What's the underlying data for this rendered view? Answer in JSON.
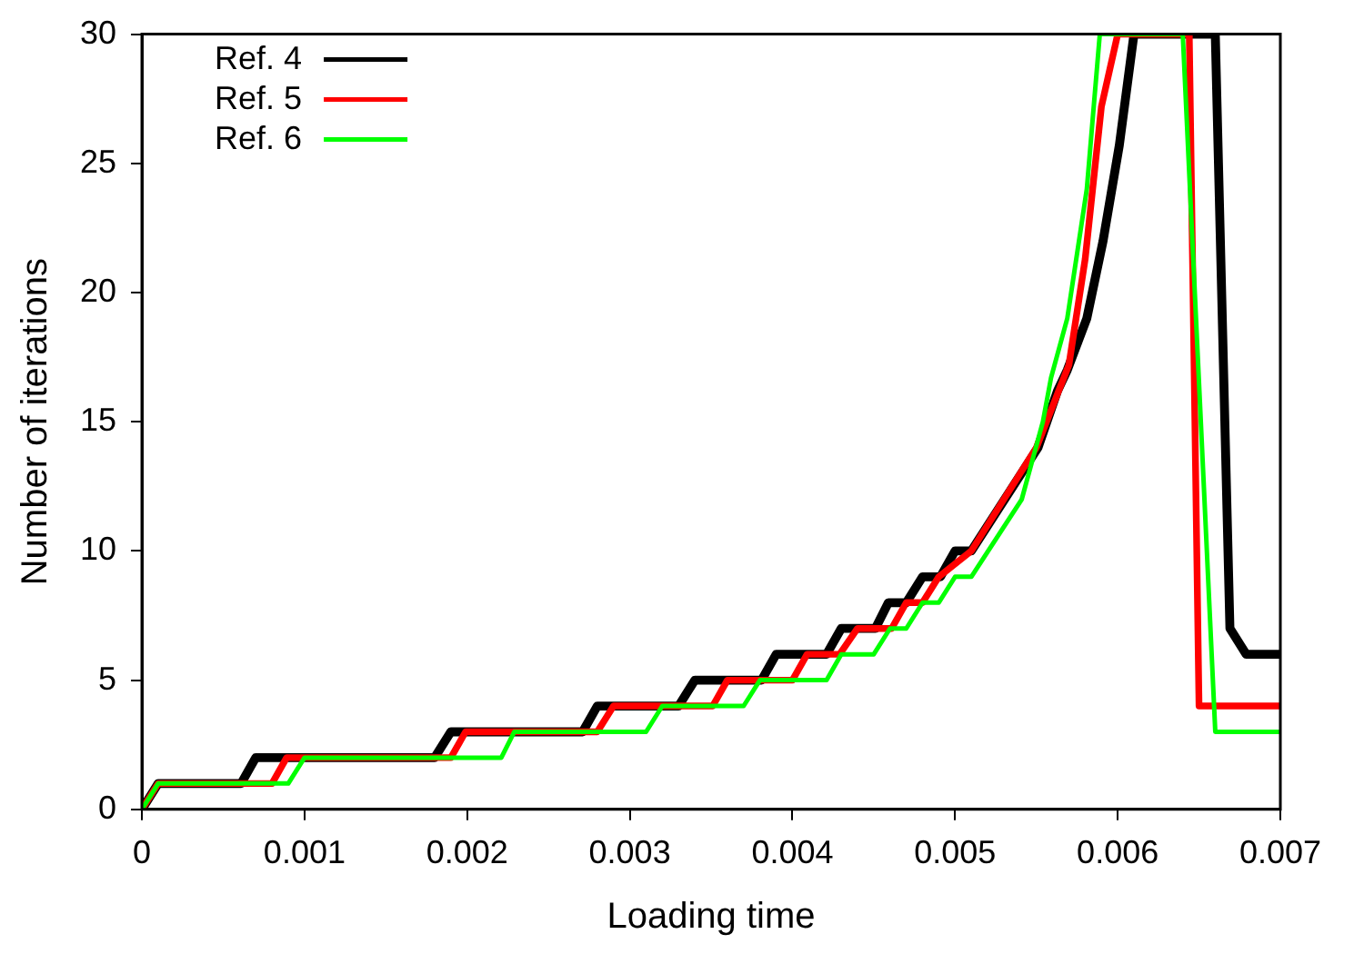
{
  "chart_data": {
    "type": "line",
    "xlabel": "Loading time",
    "ylabel": "Number of iterations",
    "xlim": [
      0,
      0.007
    ],
    "xticks": [
      0,
      0.001,
      0.002,
      0.003,
      0.004,
      0.005,
      0.006,
      0.007
    ],
    "ylim": [
      0,
      30
    ],
    "yticks": [
      0,
      5,
      10,
      15,
      20,
      25,
      30
    ],
    "grid": false,
    "legend": "top left",
    "marker": "none",
    "line_style": "solid",
    "series": [
      {
        "name": "Ref. 4",
        "color": "#000000",
        "x": [
          0,
          0.0001,
          0.00061,
          0.0007,
          0.0018,
          0.0019,
          0.00271,
          0.0028,
          0.0033,
          0.0034,
          0.00381,
          0.0039,
          0.00421,
          0.0043,
          0.00451,
          0.00459,
          0.0047,
          0.0048,
          0.00491,
          0.005,
          0.0051,
          0.00551,
          0.00563,
          0.00569,
          0.00581,
          0.00591,
          0.00601,
          0.0061,
          0.0066,
          0.00669,
          0.00679,
          0.007
        ],
        "values": [
          0,
          1,
          1,
          2,
          2,
          3,
          3,
          4,
          4,
          5,
          5,
          6,
          6,
          7,
          7,
          8,
          8,
          9,
          9,
          10,
          10,
          14,
          16.2,
          17,
          19,
          22,
          25.7,
          30,
          30,
          7,
          6,
          6
        ]
      },
      {
        "name": "Ref. 5",
        "color": "#ff0000",
        "x": [
          0,
          0.0001,
          0.0008,
          0.00089,
          0.0019,
          0.00199,
          0.0028,
          0.0029,
          0.00351,
          0.0036,
          0.004,
          0.00409,
          0.00429,
          0.0044,
          0.00461,
          0.0047,
          0.0048,
          0.0049,
          0.0051,
          0.0055,
          0.0057,
          0.0058,
          0.0059,
          0.006,
          0.00644,
          0.0065,
          0.007
        ],
        "values": [
          0,
          1,
          1,
          2,
          2,
          3,
          3,
          4,
          4,
          5,
          5,
          6,
          6,
          7,
          7,
          8,
          8,
          9,
          10,
          14,
          17.2,
          21.3,
          27.2,
          30,
          30,
          4,
          4
        ]
      },
      {
        "name": "Ref. 6",
        "color": "#00ff00",
        "x": [
          0,
          0.0001,
          0.0009,
          0.001,
          0.00221,
          0.00229,
          0.0031,
          0.0032,
          0.0037,
          0.0038,
          0.00421,
          0.0043,
          0.0045,
          0.0046,
          0.0047,
          0.0048,
          0.0049,
          0.005,
          0.0051,
          0.00541,
          0.00554,
          0.00559,
          0.00569,
          0.00581,
          0.00589,
          0.0064,
          0.0066,
          0.007
        ],
        "values": [
          0,
          1,
          1,
          2,
          2,
          3,
          3,
          4,
          4,
          5,
          5,
          6,
          6,
          7,
          7,
          8,
          8,
          9,
          9,
          12,
          15,
          16.7,
          19,
          24,
          30,
          30,
          3,
          3
        ]
      }
    ]
  }
}
